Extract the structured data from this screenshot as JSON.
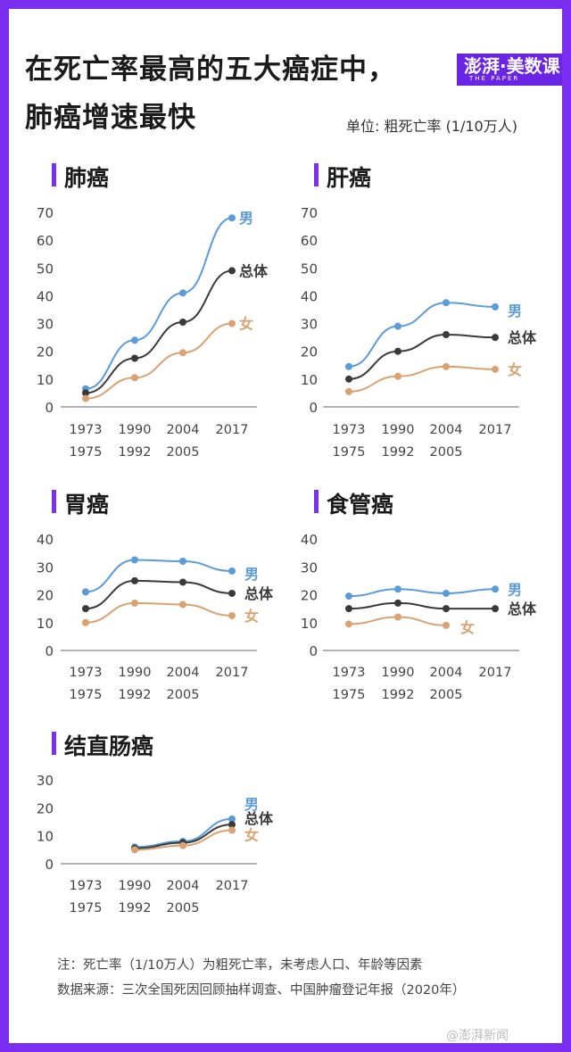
{
  "header": {
    "title_line1": "在死亡率最高的五大癌症中，",
    "title_line2": "肺癌增速最快",
    "unit": "单位: 粗死亡率 (1/10万人)",
    "logo_main": "澎湃·美数课",
    "logo_sub": "THE PAPER"
  },
  "colors": {
    "male": "#5b9bd8",
    "total": "#3a3a3a",
    "female": "#d9a272",
    "accent": "#7b2ff0"
  },
  "x_labels": [
    {
      "top": "1973",
      "bottom": "1975"
    },
    {
      "top": "1990",
      "bottom": "1992"
    },
    {
      "top": "2004",
      "bottom": "2005"
    },
    {
      "top": "2017",
      "bottom": ""
    }
  ],
  "chart_data": [
    {
      "type": "line",
      "title": "肺癌",
      "ylim": [
        0,
        70
      ],
      "yticks": [
        0,
        10,
        20,
        30,
        40,
        50,
        60,
        70
      ],
      "series": [
        {
          "name": "男",
          "key": "male",
          "values": [
            6.5,
            24,
            41,
            68
          ]
        },
        {
          "name": "总体",
          "key": "total",
          "values": [
            5,
            17.5,
            30.5,
            49
          ]
        },
        {
          "name": "女",
          "key": "female",
          "values": [
            3,
            10.5,
            19.5,
            30
          ]
        }
      ]
    },
    {
      "type": "line",
      "title": "肝癌",
      "ylim": [
        0,
        70
      ],
      "yticks": [
        0,
        10,
        20,
        30,
        40,
        50,
        60,
        70
      ],
      "series": [
        {
          "name": "男",
          "key": "male",
          "values": [
            14.5,
            29,
            37.5,
            36
          ]
        },
        {
          "name": "总体",
          "key": "total",
          "values": [
            10,
            20,
            26,
            25
          ]
        },
        {
          "name": "女",
          "key": "female",
          "values": [
            5.5,
            11,
            14.5,
            13.5
          ]
        }
      ]
    },
    {
      "type": "line",
      "title": "胃癌",
      "ylim": [
        0,
        40
      ],
      "yticks": [
        0,
        10,
        20,
        30,
        40
      ],
      "series": [
        {
          "name": "男",
          "key": "male",
          "values": [
            21,
            32.5,
            32,
            28.5
          ]
        },
        {
          "name": "总体",
          "key": "total",
          "values": [
            15,
            25,
            24.5,
            20.5
          ]
        },
        {
          "name": "女",
          "key": "female",
          "values": [
            10,
            17,
            16.5,
            12.5
          ]
        }
      ]
    },
    {
      "type": "line",
      "title": "食管癌",
      "ylim": [
        0,
        40
      ],
      "yticks": [
        0,
        10,
        20,
        30,
        40
      ],
      "series": [
        {
          "name": "男",
          "key": "male",
          "values": [
            19.5,
            22,
            20.5,
            22
          ]
        },
        {
          "name": "总体",
          "key": "total",
          "values": [
            15,
            17,
            15,
            15
          ]
        },
        {
          "name": "女",
          "key": "female",
          "values": [
            9.5,
            12,
            9,
            null
          ]
        }
      ]
    },
    {
      "type": "line",
      "title": "结直肠癌",
      "ylim": [
        0,
        30
      ],
      "yticks": [
        0,
        10,
        20,
        30
      ],
      "series": [
        {
          "name": "男",
          "key": "male",
          "values": [
            null,
            6,
            8,
            16
          ]
        },
        {
          "name": "总体",
          "key": "total",
          "values": [
            null,
            5.5,
            7.5,
            14
          ]
        },
        {
          "name": "女",
          "key": "female",
          "values": [
            null,
            5,
            6.5,
            12
          ]
        }
      ]
    }
  ],
  "notes": {
    "note": "注：死亡率（1/10万人）为粗死亡率，未考虑人口、年龄等因素",
    "source": "数据来源：三次全国死因回顾抽样调查、中国肿瘤登记年报（2020年）"
  },
  "watermark": "@澎湃新闻"
}
